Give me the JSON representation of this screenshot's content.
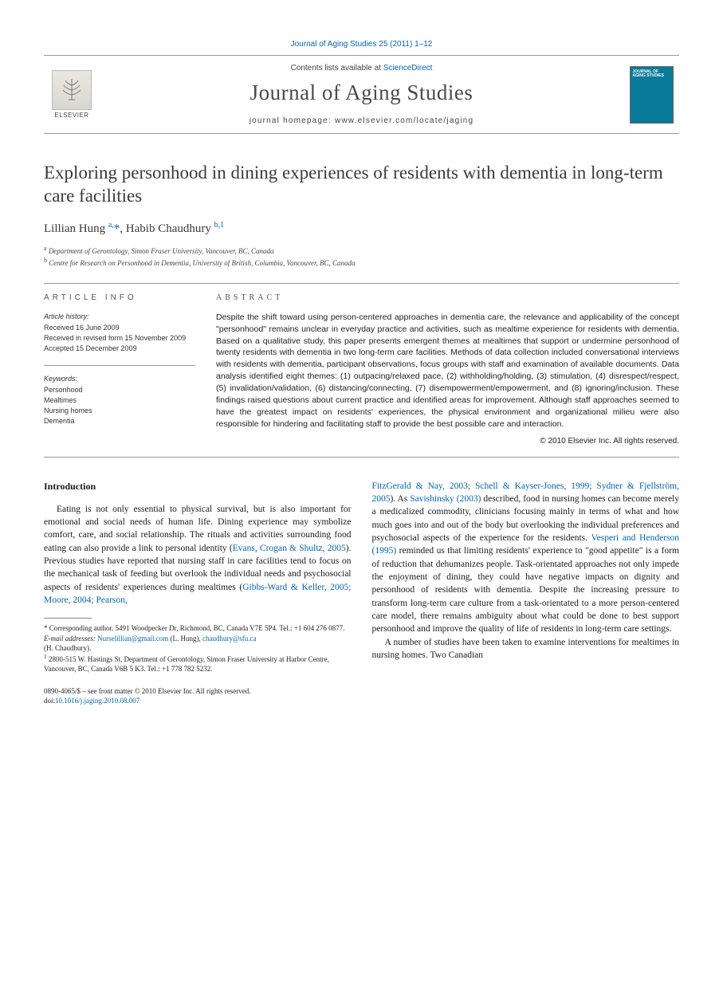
{
  "header": {
    "citation": "Journal of Aging Studies 25 (2011) 1–12",
    "contents_prefix": "Contents lists available at ",
    "contents_link": "ScienceDirect",
    "journal_title": "Journal of Aging Studies",
    "homepage_prefix": "journal homepage: ",
    "homepage_url": "www.elsevier.com/locate/jaging",
    "elsevier_label": "ELSEVIER",
    "cover_text": "JOURNAL OF AGING STUDIES"
  },
  "article": {
    "title": "Exploring personhood in dining experiences of residents with dementia in long-term care facilities",
    "authors_html": "Lillian Hung <sup>a,</sup><span class=\"star\">*</span>, Habib Chaudhury <sup>b,1</sup>",
    "affiliations": [
      {
        "marker": "a",
        "text": "Department of Gerontology, Simon Fraser University, Vancouver, BC, Canada"
      },
      {
        "marker": "b",
        "text": "Centre for Research on Personhood in Dementia, University of British, Columbia, Vancouver, BC, Canada"
      }
    ]
  },
  "info": {
    "heading": "ARTICLE INFO",
    "history_label": "Article history:",
    "history": [
      "Received 16 June 2009",
      "Received in revised form 15 November 2009",
      "Accepted 15 December 2009"
    ],
    "keywords_label": "Keywords:",
    "keywords": [
      "Personhood",
      "Mealtimes",
      "Nursing homes",
      "Dementia"
    ]
  },
  "abstract": {
    "heading": "ABSTRACT",
    "text": "Despite the shift toward using person-centered approaches in dementia care, the relevance and applicability of the concept \"personhood\" remains unclear in everyday practice and activities, such as mealtime experience for residents with dementia. Based on a qualitative study, this paper presents emergent themes at mealtimes that support or undermine personhood of twenty residents with dementia in two long-term care facilities. Methods of data collection included conversational interviews with residents with dementia, participant observations, focus groups with staff and examination of available documents. Data analysis identified eight themes: (1) outpacing/relaxed pace, (2) withholding/holding, (3) stimulation, (4) disrespect/respect, (5) invalidation/validation, (6) distancing/connecting, (7) disempowerment/empowerment, and (8) ignoring/inclusion. These findings raised questions about current practice and identified areas for improvement. Although staff approaches seemed to have the greatest impact on residents' experiences, the physical environment and organizational milieu were also responsible for hindering and facilitating staff to provide the best possible care and interaction.",
    "copyright": "© 2010 Elsevier Inc. All rights reserved."
  },
  "body": {
    "intro_heading": "Introduction",
    "col1_p1_a": "Eating is not only essential to physical survival, but is also important for emotional and social needs of human life. Dining experience may symbolize comfort, care, and social relationship. The rituals and activities surrounding food eating can also provide a link to personal identity (",
    "col1_ref1": "Evans, Crogan & Shultz, 2005",
    "col1_p1_b": "). Previous studies have reported that nursing staff in care facilities tend to focus on the mechanical task of feeding but overlook the individual needs and psychosocial aspects of residents' experiences during mealtimes (",
    "col1_ref2": "Gibbs-Ward & Keller, 2005; Moore, 2004; Pearson,",
    "col2_ref1": "FitzGerald & Nay, 2003; Schell & Kayser-Jones, 1999; Sydner & Fjellström, 2005",
    "col2_p1_a": "). As ",
    "col2_ref2": "Savishinsky (2003)",
    "col2_p1_b": " described, food in nursing homes can become merely a medicalized commodity, clinicians focusing mainly in terms of what and how much goes into and out of the body but overlooking the individual preferences and psychosocial aspects of the experience for the residents. ",
    "col2_ref3": "Vesperi and Henderson (1995)",
    "col2_p1_c": " reminded us that limiting residents' experience to \"good appetite\" is a form of reduction that dehumanizes people. Task-orientated approaches not only impede the enjoyment of dining, they could have negative impacts on dignity and personhood of residents with dementia. Despite the increasing pressure to transform long-term care culture from a task-orientated to a more person-centered care model, there remains ambiguity about what could be done to best support personhood and improve the quality of life of residents in long-term care settings.",
    "col2_p2": "A number of studies have been taken to examine interventions for mealtimes in nursing homes. Two Canadian"
  },
  "footnotes": {
    "corresponding": "Corresponding author. 5491 Woodpecker Dr, Richmond, BC, Canada V7E 5P4. Tel.: +1 604 276 0877.",
    "email_label": "E-mail addresses:",
    "email1": "Nurselillian@gmail.com",
    "email1_name": "(L. Hung),",
    "email2": "chaudhury@sfu.ca",
    "email2_name": "(H. Chaudhury).",
    "note1": "2800-515 W. Hastings St, Department of Gerontology, Simon Fraser University at Harbor Centre, Vancouver, BC, Canada V6B 5 K3. Tel.: +1 778 782 5232."
  },
  "bottom": {
    "issn_line": "0890-4065/$ – see front matter © 2010 Elsevier Inc. All rights reserved.",
    "doi_prefix": "doi:",
    "doi": "10.1016/j.jaging.2010.08.007"
  },
  "colors": {
    "link": "#0066b3",
    "rule": "#999999",
    "text": "#1a1a1a"
  }
}
